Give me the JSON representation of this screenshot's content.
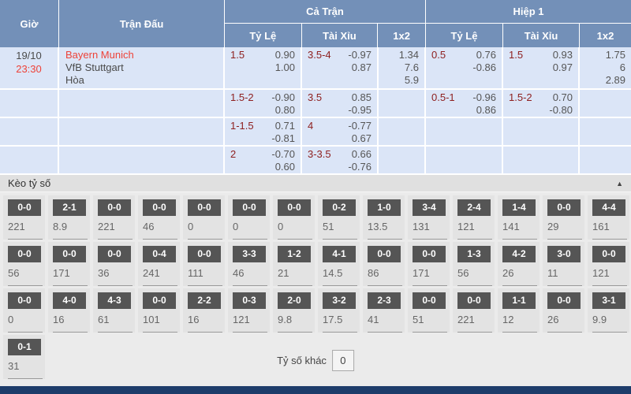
{
  "colors": {
    "header_bg": "#7390b8",
    "row_bg": "#dbe5f7",
    "accent_red": "#ee4238",
    "handicap_maroon": "#8e2020",
    "score_box_bg": "#555555",
    "section_bg": "#ebebeb",
    "bottom_bar": "#1d3c6a"
  },
  "odds_table": {
    "col_headers": {
      "time": "Giờ",
      "match": "Trận Đấu",
      "full_match": "Cả Trận",
      "first_half": "Hiệp 1",
      "handicap": "Tỷ Lệ",
      "over_under": "Tài Xỉu",
      "one_x_two": "1x2"
    },
    "match": {
      "date": "19/10",
      "time": "23:30",
      "home": "Bayern Munich",
      "away": "VfB Stuttgart",
      "draw_label": "Hòa"
    },
    "rows": [
      {
        "ft_handicap": {
          "line": "1.5",
          "odds": [
            "0.90",
            "1.00"
          ]
        },
        "ft_over_under": {
          "line": "3.5-4",
          "odds": [
            "-0.97",
            "0.87"
          ]
        },
        "ft_1x2": [
          "1.34",
          "7.6",
          "5.9"
        ],
        "ht_handicap": {
          "line": "0.5",
          "odds": [
            "0.76",
            "-0.86"
          ]
        },
        "ht_over_under": {
          "line": "1.5",
          "odds": [
            "0.93",
            "0.97"
          ]
        },
        "ht_1x2": [
          "1.75",
          "6",
          "2.89"
        ]
      },
      {
        "ft_handicap": {
          "line": "1.5-2",
          "odds": [
            "-0.90",
            "0.80"
          ]
        },
        "ft_over_under": {
          "line": "3.5",
          "odds": [
            "0.85",
            "-0.95"
          ]
        },
        "ft_1x2": [],
        "ht_handicap": {
          "line": "0.5-1",
          "odds": [
            "-0.96",
            "0.86"
          ]
        },
        "ht_over_under": {
          "line": "1.5-2",
          "odds": [
            "0.70",
            "-0.80"
          ]
        },
        "ht_1x2": []
      },
      {
        "ft_handicap": {
          "line": "1-1.5",
          "odds": [
            "0.71",
            "-0.81"
          ]
        },
        "ft_over_under": {
          "line": "4",
          "odds": [
            "-0.77",
            "0.67"
          ]
        },
        "ft_1x2": [],
        "ht_handicap": null,
        "ht_over_under": null,
        "ht_1x2": []
      },
      {
        "ft_handicap": {
          "line": "2",
          "odds": [
            "-0.70",
            "0.60"
          ]
        },
        "ft_over_under": {
          "line": "3-3.5",
          "odds": [
            "0.66",
            "-0.76"
          ]
        },
        "ft_1x2": [],
        "ht_handicap": null,
        "ht_over_under": null,
        "ht_1x2": []
      }
    ]
  },
  "score_section": {
    "title": "Kèo tỷ số",
    "collapse_icon": "▲",
    "score_rows": [
      [
        {
          "score": "0-0",
          "odds": "221"
        },
        {
          "score": "2-1",
          "odds": "8.9"
        },
        {
          "score": "0-0",
          "odds": "221"
        },
        {
          "score": "0-0",
          "odds": "46"
        },
        {
          "score": "0-0",
          "odds": "0"
        },
        {
          "score": "0-0",
          "odds": "0"
        },
        {
          "score": "0-0",
          "odds": "0"
        },
        {
          "score": "0-2",
          "odds": "51"
        },
        {
          "score": "1-0",
          "odds": "13.5"
        },
        {
          "score": "3-4",
          "odds": "131"
        },
        {
          "score": "2-4",
          "odds": "121"
        },
        {
          "score": "1-4",
          "odds": "141"
        },
        {
          "score": "0-0",
          "odds": "29"
        },
        {
          "score": "4-4",
          "odds": "161"
        }
      ],
      [
        {
          "score": "0-0",
          "odds": "56"
        },
        {
          "score": "0-0",
          "odds": "171"
        },
        {
          "score": "0-0",
          "odds": "36"
        },
        {
          "score": "0-4",
          "odds": "241"
        },
        {
          "score": "0-0",
          "odds": "111"
        },
        {
          "score": "3-3",
          "odds": "46"
        },
        {
          "score": "1-2",
          "odds": "21"
        },
        {
          "score": "4-1",
          "odds": "14.5"
        },
        {
          "score": "0-0",
          "odds": "86"
        },
        {
          "score": "0-0",
          "odds": "171"
        },
        {
          "score": "1-3",
          "odds": "56"
        },
        {
          "score": "4-2",
          "odds": "26"
        },
        {
          "score": "3-0",
          "odds": "11"
        },
        {
          "score": "0-0",
          "odds": "121"
        }
      ],
      [
        {
          "score": "0-0",
          "odds": "0"
        },
        {
          "score": "4-0",
          "odds": "16"
        },
        {
          "score": "4-3",
          "odds": "61"
        },
        {
          "score": "0-0",
          "odds": "101"
        },
        {
          "score": "2-2",
          "odds": "16"
        },
        {
          "score": "0-3",
          "odds": "121"
        },
        {
          "score": "2-0",
          "odds": "9.8"
        },
        {
          "score": "3-2",
          "odds": "17.5"
        },
        {
          "score": "2-3",
          "odds": "41"
        },
        {
          "score": "0-0",
          "odds": "51"
        },
        {
          "score": "0-0",
          "odds": "221"
        },
        {
          "score": "1-1",
          "odds": "12"
        },
        {
          "score": "0-0",
          "odds": "26"
        },
        {
          "score": "3-1",
          "odds": "9.9"
        }
      ],
      [
        {
          "score": "0-1",
          "odds": "31"
        }
      ]
    ],
    "other_score_label": "Tỷ số khác",
    "other_score_value": "0"
  }
}
